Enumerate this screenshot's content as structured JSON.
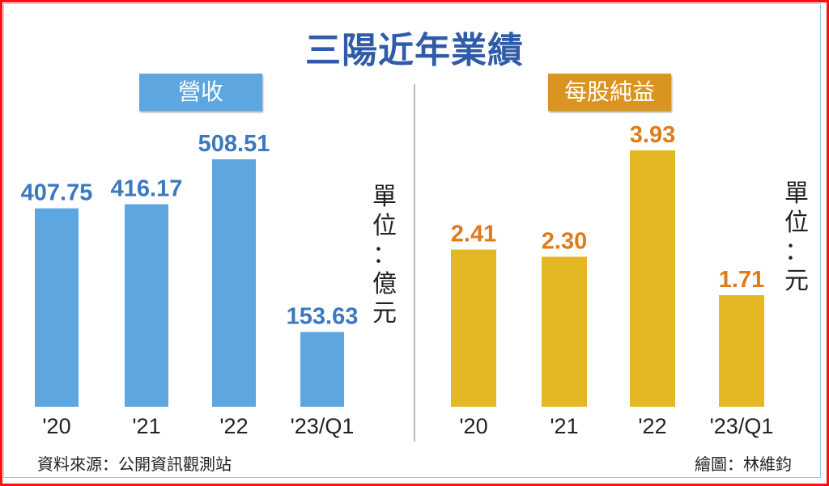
{
  "title": "三陽近年業績",
  "source": "資料來源：公開資訊觀測站",
  "credit": "繪圖：林維鈞",
  "colors": {
    "border": "#ff1010",
    "title": "#2f5ca8",
    "revenue_bar": "#5ea6e0",
    "revenue_label": "#3a78c0",
    "eps_bar": "#e3b824",
    "eps_label": "#e07b1a",
    "eps_header": "#d9951f"
  },
  "chart_data": [
    {
      "type": "bar",
      "title": "營收",
      "unit": "單位：億元",
      "unit_chars": [
        "單",
        "位",
        "：",
        "億",
        "元"
      ],
      "categories": [
        "'20",
        "'21",
        "'22",
        "'23/Q1"
      ],
      "values": [
        407.75,
        416.17,
        508.51,
        153.63
      ],
      "value_labels": [
        "407.75",
        "416.17",
        "508.51",
        "153.63"
      ],
      "grid": false
    },
    {
      "type": "bar",
      "title": "每股純益",
      "unit": "單位：元",
      "unit_chars": [
        "單",
        "位",
        "：",
        "元"
      ],
      "categories": [
        "'20",
        "'21",
        "'22",
        "'23/Q1"
      ],
      "values": [
        2.41,
        2.3,
        3.93,
        1.71
      ],
      "value_labels": [
        "2.41",
        "2.30",
        "3.93",
        "1.71"
      ],
      "grid": false
    }
  ]
}
